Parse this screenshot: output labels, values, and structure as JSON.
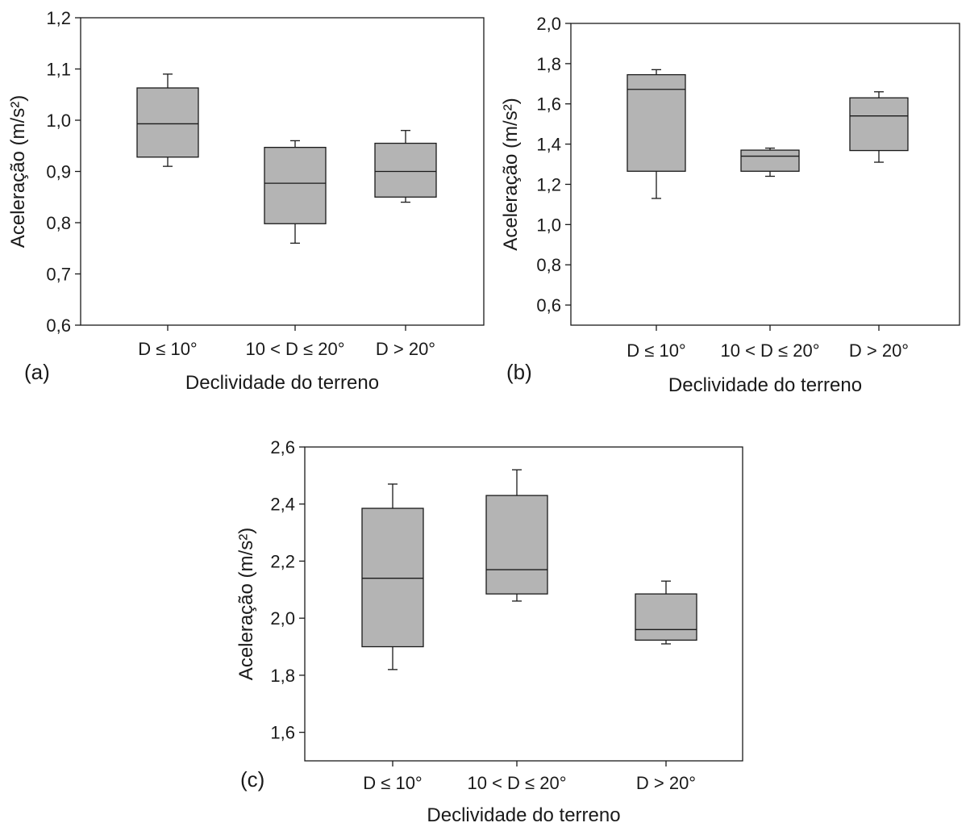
{
  "chart_data": [
    {
      "type": "box",
      "panel_label": "(a)",
      "xlabel": "Declividade do terreno",
      "ylabel": "Aceleração (m/s²)",
      "categories": [
        "D ≤ 10°",
        "10 < D ≤ 20°",
        "D > 20°"
      ],
      "ylim": [
        0.6,
        1.2
      ],
      "yticks": [
        "0,6",
        "0,7",
        "0,8",
        "0,9",
        "1,0",
        "1,1",
        "1,2"
      ],
      "boxes": [
        {
          "min": 0.91,
          "q1": 0.928,
          "median": 0.993,
          "q3": 1.063,
          "max": 1.09
        },
        {
          "min": 0.76,
          "q1": 0.798,
          "median": 0.877,
          "q3": 0.947,
          "max": 0.96
        },
        {
          "min": 0.84,
          "q1": 0.85,
          "median": 0.9,
          "q3": 0.955,
          "max": 0.98
        }
      ]
    },
    {
      "type": "box",
      "panel_label": "(b)",
      "xlabel": "Declividade do terreno",
      "ylabel": "Aceleração (m/s²)",
      "categories": [
        "D ≤ 10°",
        "10 < D ≤ 20°",
        "D > 20°"
      ],
      "ylim": [
        0.5,
        2.0
      ],
      "yticks": [
        "0,6",
        "0,8",
        "1,0",
        "1,2",
        "1,4",
        "1,6",
        "1,8",
        "2,0"
      ],
      "boxes": [
        {
          "min": 1.13,
          "q1": 1.265,
          "median": 1.672,
          "q3": 1.745,
          "max": 1.77
        },
        {
          "min": 1.24,
          "q1": 1.265,
          "median": 1.34,
          "q3": 1.37,
          "max": 1.38
        },
        {
          "min": 1.31,
          "q1": 1.368,
          "median": 1.54,
          "q3": 1.63,
          "max": 1.66
        }
      ]
    },
    {
      "type": "box",
      "panel_label": "(c)",
      "xlabel": "Declividade do terreno",
      "ylabel": "Aceleração (m/s²)",
      "categories": [
        "D ≤ 10°",
        "10 < D ≤ 20°",
        "D > 20°"
      ],
      "ylim": [
        1.5,
        2.6
      ],
      "yticks": [
        "1,6",
        "1,8",
        "2,0",
        "2,2",
        "2,4",
        "2,6"
      ],
      "boxes": [
        {
          "min": 1.82,
          "q1": 1.9,
          "median": 2.14,
          "q3": 2.385,
          "max": 2.47
        },
        {
          "min": 2.06,
          "q1": 2.085,
          "median": 2.17,
          "q3": 2.43,
          "max": 2.52
        },
        {
          "min": 1.91,
          "q1": 1.923,
          "median": 1.96,
          "q3": 2.085,
          "max": 2.13
        }
      ]
    }
  ],
  "colors": {
    "box_fill": "#b4b4b4",
    "stroke": "#1a1a1a",
    "text": "#1a1a1a",
    "background": "#ffffff"
  }
}
